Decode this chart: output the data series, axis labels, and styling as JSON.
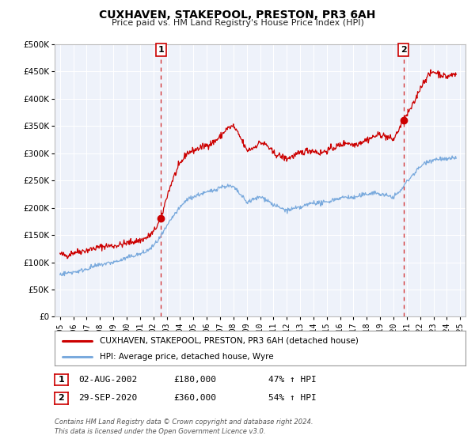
{
  "title": "CUXHAVEN, STAKEPOOL, PRESTON, PR3 6AH",
  "subtitle": "Price paid vs. HM Land Registry's House Price Index (HPI)",
  "ylim": [
    0,
    500000
  ],
  "yticks": [
    0,
    50000,
    100000,
    150000,
    200000,
    250000,
    300000,
    350000,
    400000,
    450000,
    500000
  ],
  "ytick_labels": [
    "£0",
    "£50K",
    "£100K",
    "£150K",
    "£200K",
    "£250K",
    "£300K",
    "£350K",
    "£400K",
    "£450K",
    "£500K"
  ],
  "xlim_start": 1994.6,
  "xlim_end": 2025.4,
  "red_line_color": "#cc0000",
  "blue_line_color": "#7aaadd",
  "marker1_date": 2002.58,
  "marker1_value": 180000,
  "marker2_date": 2020.75,
  "marker2_value": 360000,
  "vline1_date": 2002.58,
  "vline2_date": 2020.75,
  "legend_label1": "CUXHAVEN, STAKEPOOL, PRESTON, PR3 6AH (detached house)",
  "legend_label2": "HPI: Average price, detached house, Wyre",
  "annotation1_label": "1",
  "annotation2_label": "2",
  "table_row1": [
    "1",
    "02-AUG-2002",
    "£180,000",
    "47% ↑ HPI"
  ],
  "table_row2": [
    "2",
    "29-SEP-2020",
    "£360,000",
    "54% ↑ HPI"
  ],
  "footer": "Contains HM Land Registry data © Crown copyright and database right 2024.\nThis data is licensed under the Open Government Licence v3.0.",
  "plot_bg_color": "#eef2fa",
  "grid_color": "#ffffff"
}
